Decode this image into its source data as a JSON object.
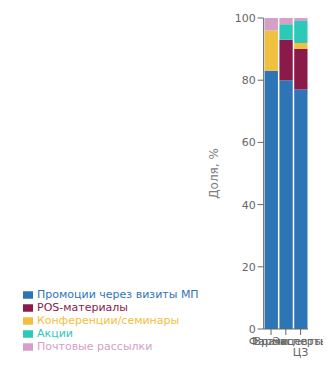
{
  "chart_data": {
    "type": "bar",
    "stacked": true,
    "categories": [
      "Врачи",
      "Фармацевты",
      "Эксперты ЦЗ"
    ],
    "series": [
      {
        "name": "Промоции через визиты МП",
        "values": [
          83,
          80,
          77
        ],
        "color": "#2e75b6"
      },
      {
        "name": "POS-материалы",
        "values": [
          0,
          13,
          13
        ],
        "color": "#8b1a4a"
      },
      {
        "name": "Конференции/семинары",
        "values": [
          13,
          0,
          2
        ],
        "color": "#f0c040"
      },
      {
        "name": "Акции",
        "values": [
          0,
          5,
          7
        ],
        "color": "#2ec8b8"
      },
      {
        "name": "Почтовые рассылки",
        "values": [
          4,
          2,
          1
        ],
        "color": "#d4a0c8"
      }
    ],
    "ylabel": "Доля, %",
    "ylim": [
      0,
      100
    ],
    "yticks": [
      0,
      20,
      40,
      60,
      80,
      100
    ],
    "grid": false,
    "legend": "lower left"
  }
}
